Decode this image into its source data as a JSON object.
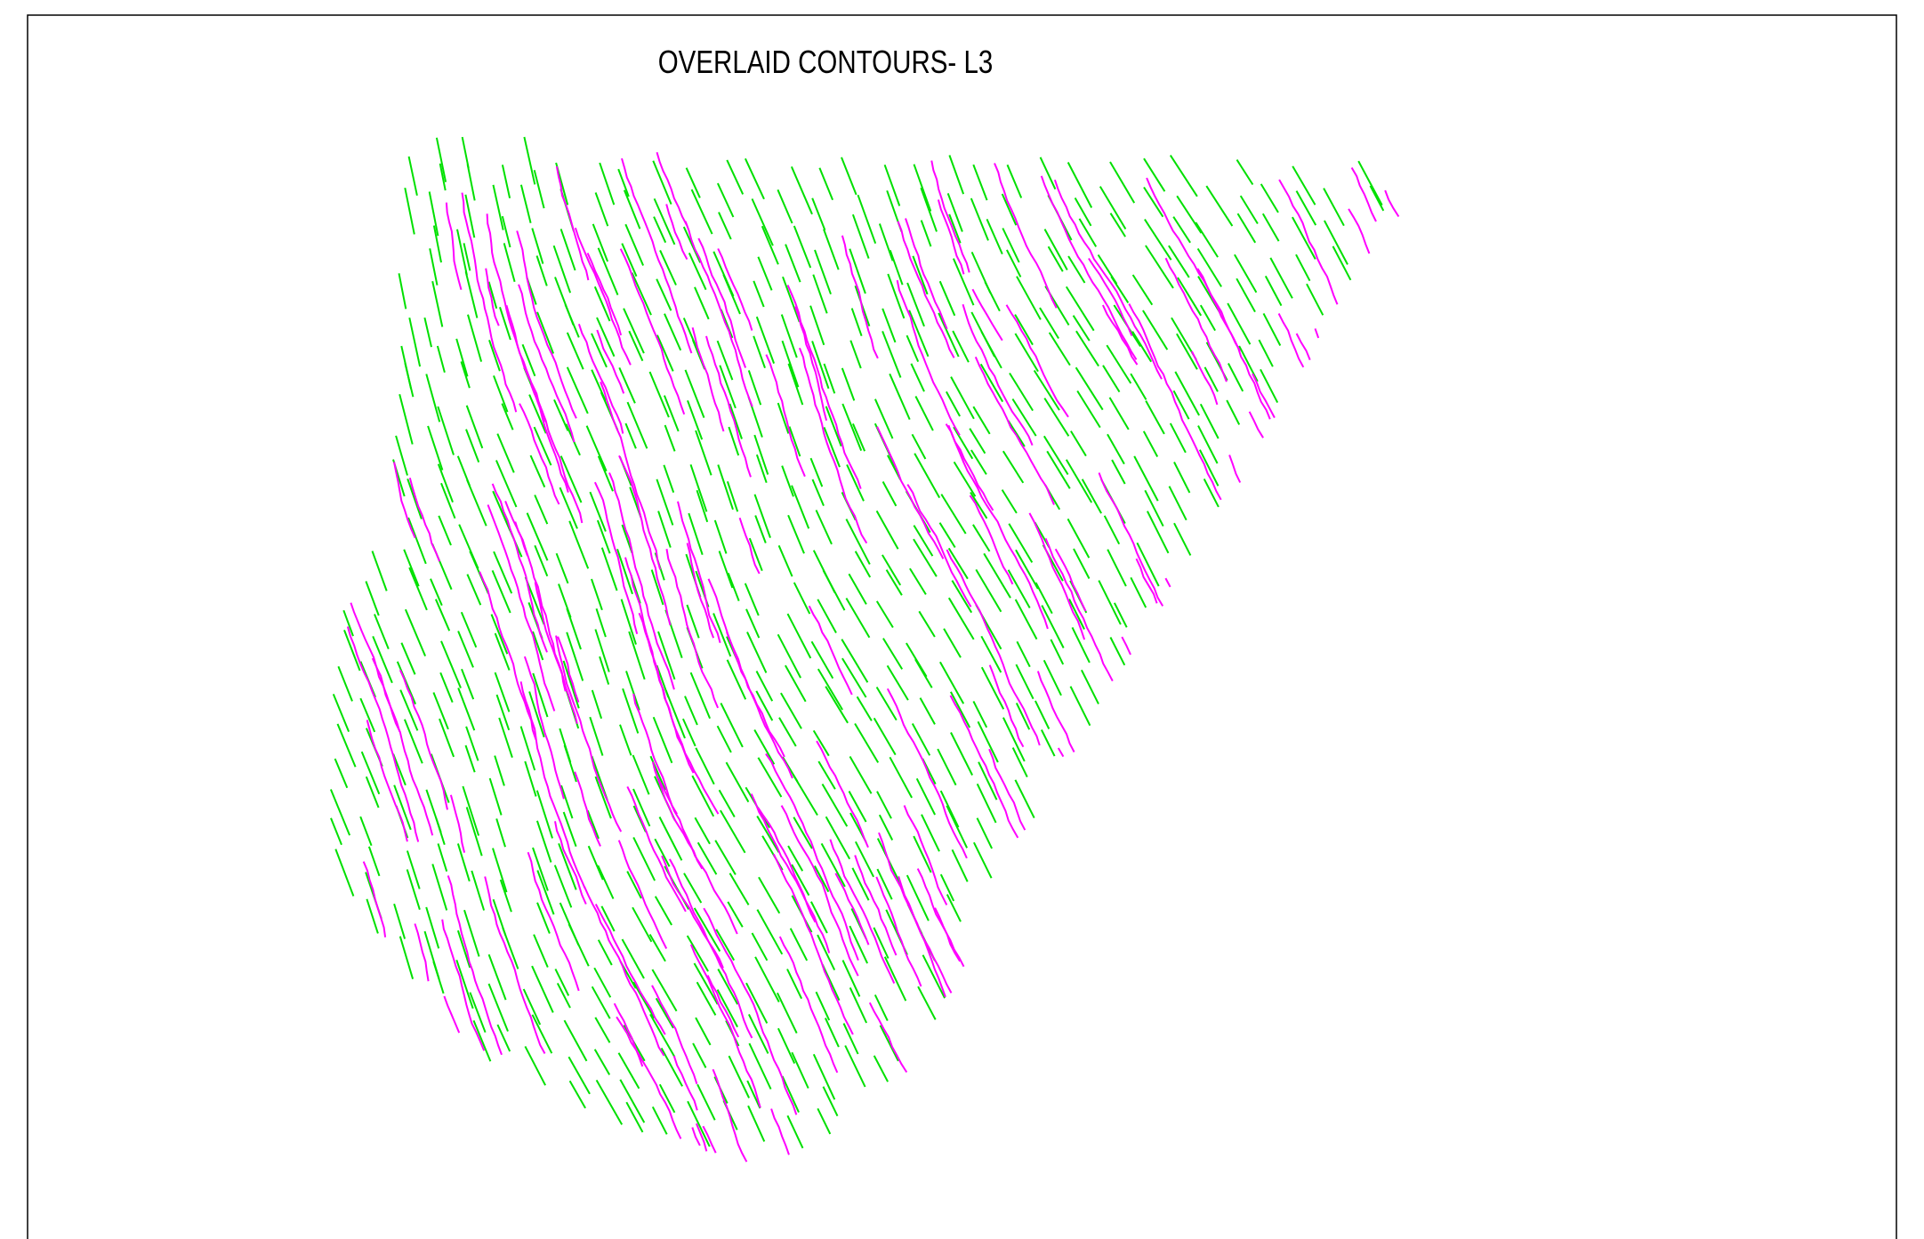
{
  "title": "OVERLAID CONTOURS- L3"
}
